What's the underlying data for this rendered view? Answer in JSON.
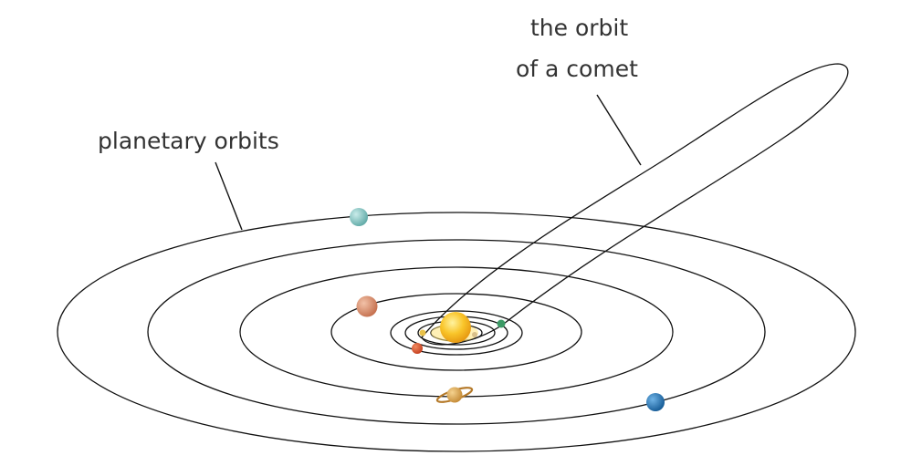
{
  "labels": {
    "planetary_orbits": "planetary orbits",
    "comet_line1": "the orbit",
    "comet_line2": "of a comet"
  },
  "colors": {
    "orbit_line": "#111111",
    "sun": "#f6b21b",
    "sun_glow": "#ffe37a",
    "mercury": "#e8c14a",
    "venus": "#d9c08a",
    "earth": "#3c9a66",
    "mars": "#d9522b",
    "jupiter": "#d98a6a",
    "saturn": "#d7a352",
    "uranus": "#7fc7c4",
    "neptune": "#1f6fb0"
  }
}
